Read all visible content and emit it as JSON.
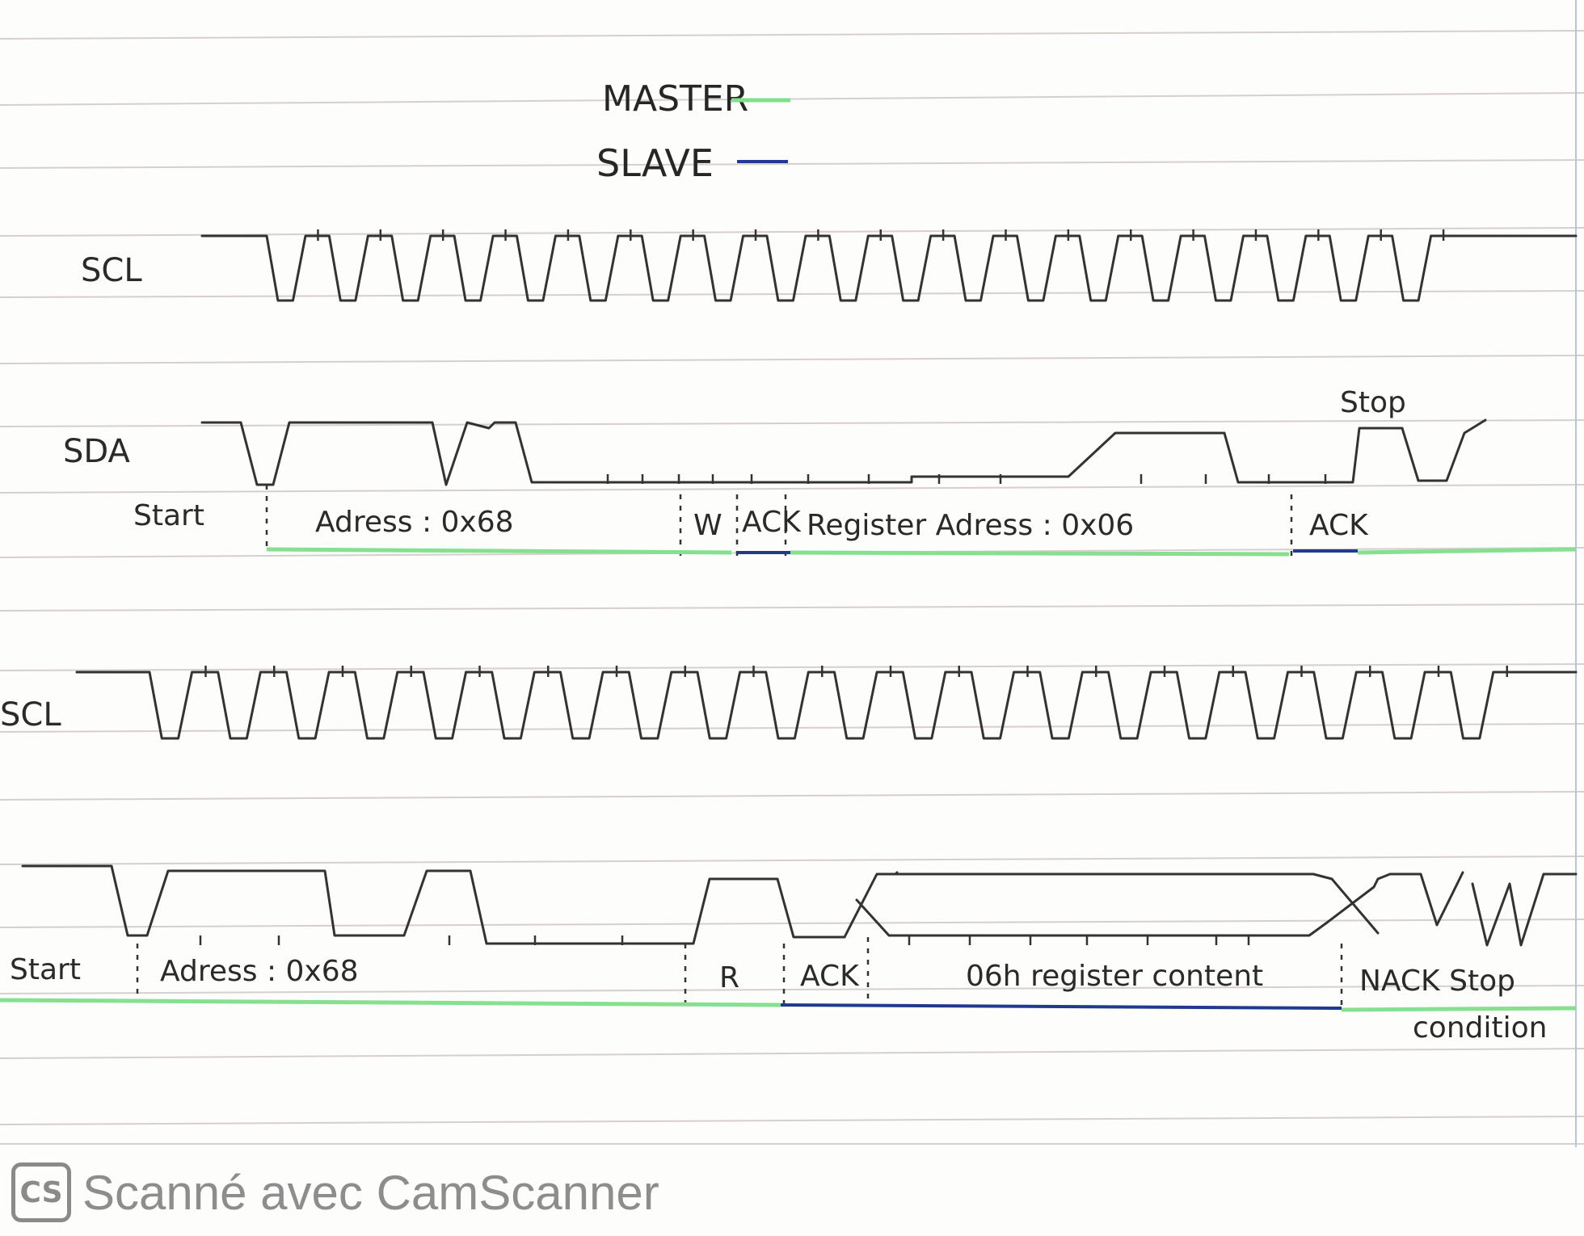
{
  "legend": {
    "master": {
      "label": "MASTER",
      "color": "#7fe08a"
    },
    "slave": {
      "label": "SLAVE",
      "color": "#1f3b8f"
    }
  },
  "write_frame": {
    "scl_label": "SCL",
    "sda_label": "SDA",
    "stop_label": "Stop",
    "segments": {
      "start": "Start",
      "address": "Adress : 0x68",
      "rw": "W",
      "ack": "ACK",
      "register": "Register Adress : 0x06",
      "ack2": "ACK"
    }
  },
  "read_frame": {
    "scl_label": "SCL",
    "segments": {
      "start": "Start",
      "address": "Adress : 0x68",
      "rw": "R",
      "ack": "ACK",
      "content": "06h register content",
      "nack_stop": "NACK Stop",
      "condition": "condition"
    }
  },
  "watermark": {
    "logo": "CS",
    "text": "Scanné avec CamScanner"
  }
}
